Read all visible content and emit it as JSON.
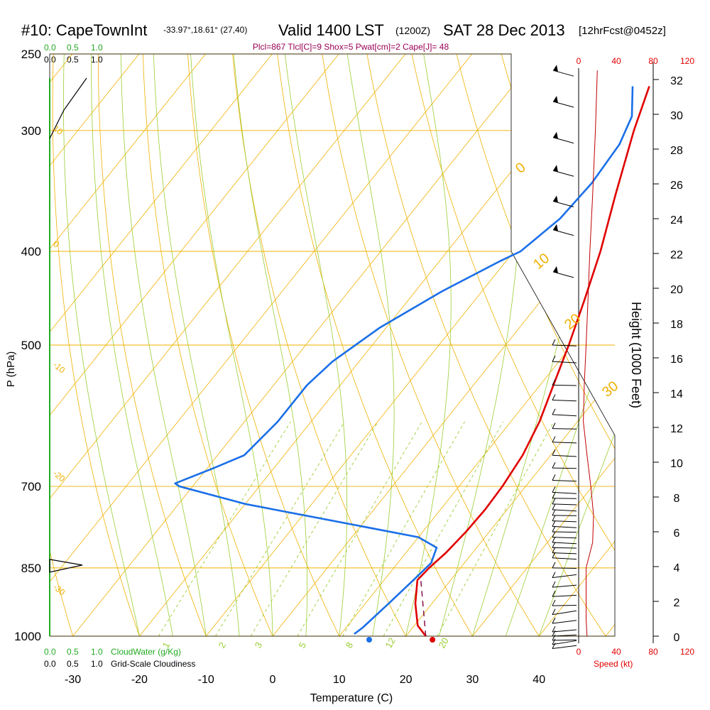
{
  "header": {
    "station": "#10: CapeTownInt",
    "coords": "-33.97°,18.61° (27,40)",
    "valid": "Valid 1400 LST",
    "utc": "(1200Z)",
    "date": "SAT 28 Dec 2013",
    "forecast": "[12hrFcst@0452z]",
    "indices": "Plcl=867 Tlcl[C]=9 Shox=5 Pwat[cm]=2 Cape[J]= 48"
  },
  "legend": {
    "cloudwater_ticks": [
      "0.0",
      "0.5",
      "1.0"
    ],
    "cloudwater_label": "CloudWater (g/Kg)",
    "cloudiness_ticks": [
      "0.0",
      "0.5",
      "1.0"
    ],
    "cloudiness_label": "Grid-Scale Cloudiness",
    "speed_label": "Speed (kt)",
    "speed_ticks": [
      "0",
      "40",
      "80",
      "120"
    ]
  },
  "colors": {
    "isobar": "#f0b000",
    "isotherm": "#f0b000",
    "dry_adiabat": "#f0b000",
    "moist_adiabat": "#9acd32",
    "mixing_ratio": "#9acd32",
    "temperature": "#e00000",
    "dewpoint": "#1a6fe8",
    "parcel": "#800040",
    "cloudwater": "#22aa22",
    "wind_speed": "#c00000",
    "indices": "#990055"
  },
  "chart_data": {
    "type": "line",
    "subtype": "skew-t log-p sounding",
    "xlabel": "Temperature (C)",
    "ylabel": "P (hPa)",
    "y2label": "Height (1000 Feet)",
    "x_ticks": [
      "-30",
      "-20",
      "-10",
      "0",
      "10",
      "20",
      "30",
      "40"
    ],
    "pressure_ticks": [
      "250",
      "300",
      "400",
      "500",
      "700",
      "850",
      "1000"
    ],
    "height_ticks": [
      "0",
      "2",
      "4",
      "6",
      "8",
      "10",
      "12",
      "14",
      "16",
      "18",
      "20",
      "22",
      "24",
      "26",
      "28",
      "30",
      "32"
    ],
    "ylim_hpa": [
      1000,
      250
    ],
    "xlim_c": [
      -35,
      36
    ],
    "log_pressure": true,
    "isotherm_labels": [
      "0",
      "10",
      "20",
      "30"
    ],
    "dry_adiabat_labels": [
      "10",
      "0",
      "-10",
      "-20",
      "-30"
    ],
    "mixing_ratio_labels": [
      "1",
      "2",
      "3",
      "5",
      "8",
      "12",
      "20"
    ],
    "series": [
      {
        "name": "Temperature",
        "points": [
          [
            23.0,
            1000
          ],
          [
            20.5,
            975
          ],
          [
            17.5,
            925
          ],
          [
            15.0,
            875
          ],
          [
            15.3,
            850
          ],
          [
            16.0,
            820
          ],
          [
            16.5,
            780
          ],
          [
            16.7,
            740
          ],
          [
            16.5,
            700
          ],
          [
            15.8,
            650
          ],
          [
            14.3,
            600
          ],
          [
            12.0,
            550
          ],
          [
            9.5,
            500
          ],
          [
            6.5,
            450
          ],
          [
            3.0,
            400
          ],
          [
            -1.5,
            350
          ],
          [
            -6.5,
            300
          ],
          [
            -9.5,
            270
          ]
        ]
      },
      {
        "name": "Dewpoint",
        "points": [
          [
            12.0,
            995
          ],
          [
            12.5,
            980
          ],
          [
            13.5,
            925
          ],
          [
            14.5,
            870
          ],
          [
            15.0,
            840
          ],
          [
            14.0,
            810
          ],
          [
            10.0,
            790
          ],
          [
            -20.0,
            730
          ],
          [
            -32.0,
            700
          ],
          [
            -33.0,
            695
          ],
          [
            -29.0,
            670
          ],
          [
            -26.0,
            650
          ],
          [
            -25.0,
            600
          ],
          [
            -25.0,
            550
          ],
          [
            -24.0,
            520
          ],
          [
            -21.0,
            480
          ],
          [
            -16.0,
            440
          ],
          [
            -11.0,
            410
          ],
          [
            -9.0,
            400
          ],
          [
            -7.0,
            370
          ],
          [
            -6.5,
            340
          ],
          [
            -7.0,
            310
          ],
          [
            -8.5,
            290
          ],
          [
            -12.0,
            270
          ]
        ]
      },
      {
        "name": "Parcel",
        "points": [
          [
            23.0,
            1000
          ],
          [
            15.0,
            867
          ]
        ]
      },
      {
        "name": "Wind Speed (kt)",
        "points": [
          [
            9,
            1000
          ],
          [
            8,
            960
          ],
          [
            8,
            900
          ],
          [
            8,
            850
          ],
          [
            15,
            800
          ],
          [
            16,
            750
          ],
          [
            13,
            700
          ],
          [
            9,
            650
          ],
          [
            5,
            600
          ],
          [
            6,
            550
          ],
          [
            8,
            500
          ],
          [
            10,
            450
          ],
          [
            12,
            400
          ],
          [
            15,
            350
          ],
          [
            18,
            300
          ],
          [
            20,
            260
          ]
        ]
      }
    ],
    "surface_temp_c": 24,
    "surface_dew_c": 14.5,
    "wind_barbs_hpa": [
      260,
      280,
      305,
      330,
      355,
      380,
      420,
      500,
      520,
      550,
      570,
      590,
      610,
      630,
      650,
      670,
      690,
      710,
      720,
      730,
      740,
      750,
      760,
      770,
      780,
      790,
      800,
      810,
      820,
      830,
      850,
      870,
      890,
      910,
      930,
      950,
      970,
      990,
      1000,
      1010,
      1020,
      1030
    ]
  }
}
